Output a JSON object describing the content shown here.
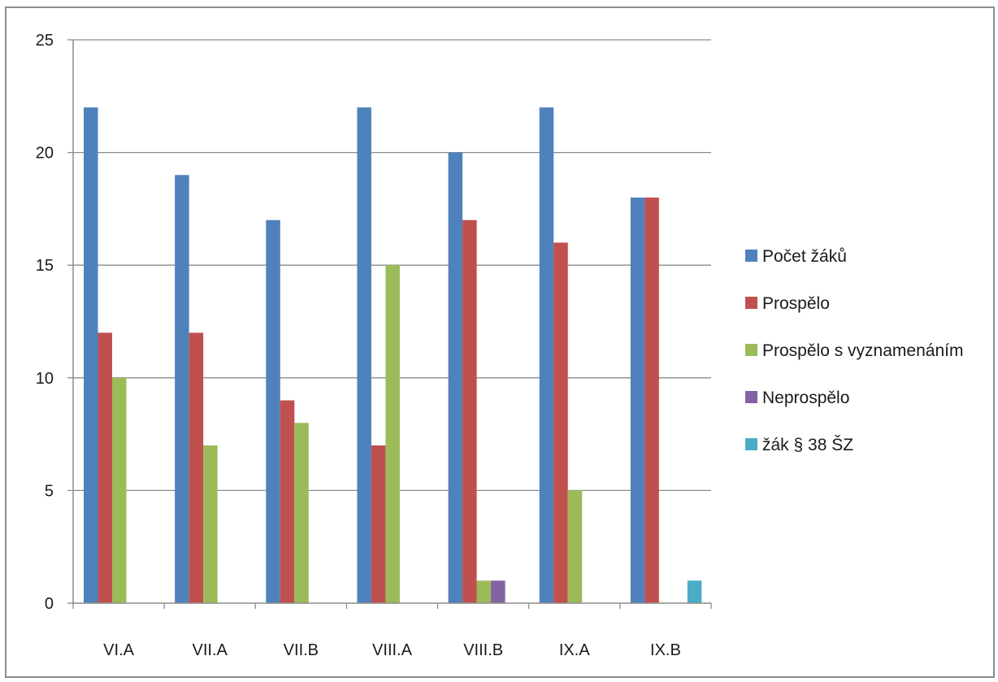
{
  "chart_data": {
    "type": "bar",
    "categories": [
      "VI.A",
      "VII.A",
      "VII.B",
      "VIII.A",
      "VIII.B",
      "IX.A",
      "IX.B"
    ],
    "series": [
      {
        "name": "Počet žáků",
        "color": "#4f81bd",
        "values": [
          22,
          19,
          17,
          22,
          20,
          22,
          18
        ]
      },
      {
        "name": "Prospělo",
        "color": "#c0504d",
        "values": [
          12,
          12,
          9,
          7,
          17,
          16,
          18
        ]
      },
      {
        "name": "Prospělo s vyznamenáním",
        "color": "#9bbb59",
        "values": [
          10,
          7,
          8,
          15,
          1,
          5,
          0
        ]
      },
      {
        "name": "Neprospělo",
        "color": "#8064a2",
        "values": [
          0,
          0,
          0,
          0,
          1,
          0,
          0
        ]
      },
      {
        "name": "žák § 38 ŠZ",
        "color": "#4bacc6",
        "values": [
          0,
          0,
          0,
          0,
          0,
          0,
          1
        ]
      }
    ],
    "y_ticks": [
      "0",
      "5",
      "10",
      "15",
      "20",
      "25"
    ],
    "ylim": [
      0,
      25
    ],
    "grid": true,
    "legend_position": "right"
  }
}
